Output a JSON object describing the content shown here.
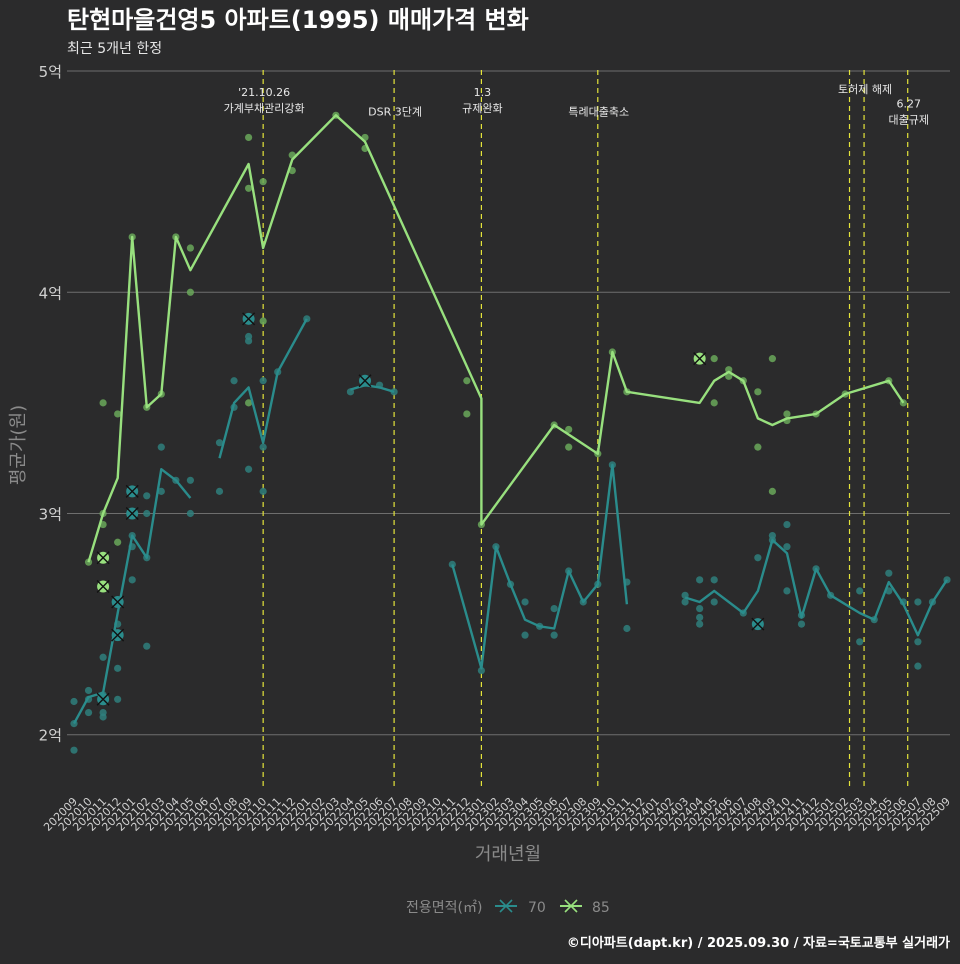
{
  "colors": {
    "background": "#2b2b2c",
    "grid": "#6e6e6e",
    "title": "#ffffff",
    "subtitle": "#e6e6e6",
    "axis_text": "#d0d0d0",
    "axis_title": "#8a8a8a",
    "event_line": "#e4e43a",
    "event_text": "#e8e8e8",
    "series_70": "#2a8c8c",
    "series_85": "#98e07e",
    "scatter_70": "#2f7f7c",
    "scatter_85": "#6aa85a",
    "cancel_mark": "#111111"
  },
  "chart_data": {
    "type": "line",
    "title": "탄현마을건영5 아파트(1995) 매매가격 변화",
    "subtitle": "최근 5개년 한정",
    "xlabel": "거래년월",
    "ylabel": "평균가(원)",
    "ylim": [
      1.75,
      5.05
    ],
    "yticks": [
      {
        "value": 2,
        "label": "2억"
      },
      {
        "value": 3,
        "label": "3억"
      },
      {
        "value": 4,
        "label": "4억"
      },
      {
        "value": 5,
        "label": "5억"
      }
    ],
    "categories": [
      "202009",
      "202010",
      "202011",
      "202012",
      "202101",
      "202102",
      "202103",
      "202104",
      "202105",
      "202106",
      "202107",
      "202108",
      "202109",
      "202110",
      "202111",
      "202112",
      "202201",
      "202202",
      "202203",
      "202204",
      "202205",
      "202206",
      "202207",
      "202208",
      "202209",
      "202210",
      "202211",
      "202212",
      "202301",
      "202302",
      "202303",
      "202304",
      "202305",
      "202306",
      "202307",
      "202308",
      "202309",
      "202310",
      "202311",
      "202312",
      "202401",
      "202402",
      "202403",
      "202404",
      "202405",
      "202406",
      "202407",
      "202408",
      "202409",
      "202410",
      "202411",
      "202412",
      "202501",
      "202502",
      "202503",
      "202504",
      "202505",
      "202506",
      "202507",
      "202508",
      "202509"
    ],
    "legend_title": "전용면적(㎡)",
    "series": [
      {
        "name": "70",
        "colorKey": "series_70",
        "segments": [
          [
            [
              0,
              2.05
            ],
            [
              1,
              2.17
            ],
            [
              2,
              2.19
            ],
            [
              3,
              2.55
            ],
            [
              4,
              2.9
            ],
            [
              5,
              2.8
            ],
            [
              6,
              3.2
            ],
            [
              7,
              3.15
            ],
            [
              8,
              3.07
            ]
          ],
          [
            [
              10,
              3.25
            ],
            [
              11,
              3.5
            ],
            [
              12,
              3.57
            ],
            [
              13,
              3.32
            ],
            [
              14,
              3.64
            ],
            [
              16,
              3.88
            ]
          ],
          [
            [
              19,
              3.56
            ],
            [
              20,
              3.58
            ],
            [
              21,
              3.57
            ],
            [
              22,
              3.55
            ]
          ],
          [
            [
              26,
              2.77
            ],
            [
              28,
              2.3
            ],
            [
              29,
              2.85
            ],
            [
              30,
              2.68
            ],
            [
              31,
              2.52
            ],
            [
              32,
              2.49
            ],
            [
              33,
              2.48
            ],
            [
              34,
              2.74
            ],
            [
              35,
              2.6
            ],
            [
              36,
              2.68
            ],
            [
              37,
              3.22
            ],
            [
              38,
              2.59
            ]
          ],
          [
            [
              42,
              2.62
            ],
            [
              43,
              2.6
            ],
            [
              44,
              2.65
            ],
            [
              46,
              2.55
            ],
            [
              47,
              2.65
            ],
            [
              48,
              2.88
            ],
            [
              49,
              2.82
            ],
            [
              50,
              2.53
            ],
            [
              51,
              2.75
            ],
            [
              52,
              2.63
            ],
            [
              54,
              2.55
            ],
            [
              55,
              2.52
            ],
            [
              56,
              2.69
            ],
            [
              57,
              2.59
            ],
            [
              58,
              2.45
            ],
            [
              59,
              2.6
            ],
            [
              60,
              2.7
            ]
          ]
        ],
        "points": [
          [
            0,
            2.05
          ],
          [
            0,
            2.15
          ],
          [
            0,
            1.93
          ],
          [
            1,
            2.2
          ],
          [
            1,
            2.16
          ],
          [
            1,
            2.1
          ],
          [
            2,
            2.18
          ],
          [
            2,
            2.1
          ],
          [
            2,
            2.08
          ],
          [
            2,
            2.35
          ],
          [
            3,
            2.5
          ],
          [
            3,
            2.3
          ],
          [
            3,
            2.16
          ],
          [
            4,
            2.85
          ],
          [
            4,
            2.7
          ],
          [
            4,
            2.9
          ],
          [
            5,
            2.8
          ],
          [
            5,
            2.4
          ],
          [
            5,
            3.08
          ],
          [
            5,
            3.0
          ],
          [
            6,
            3.3
          ],
          [
            6,
            3.1
          ],
          [
            7,
            3.15
          ],
          [
            8,
            3.15
          ],
          [
            8,
            3.0
          ],
          [
            10,
            3.1
          ],
          [
            10,
            3.32
          ],
          [
            11,
            3.48
          ],
          [
            11,
            3.6
          ],
          [
            12,
            3.78
          ],
          [
            12,
            3.8
          ],
          [
            12,
            3.2
          ],
          [
            13,
            3.6
          ],
          [
            13,
            3.3
          ],
          [
            13,
            3.1
          ],
          [
            14,
            3.64
          ],
          [
            16,
            3.88
          ],
          [
            19,
            3.55
          ],
          [
            21,
            3.58
          ],
          [
            22,
            3.55
          ],
          [
            26,
            2.77
          ],
          [
            28,
            2.29
          ],
          [
            29,
            2.85
          ],
          [
            30,
            2.68
          ],
          [
            31,
            2.6
          ],
          [
            31,
            2.45
          ],
          [
            32,
            2.49
          ],
          [
            33,
            2.45
          ],
          [
            33,
            2.57
          ],
          [
            34,
            2.74
          ],
          [
            35,
            2.6
          ],
          [
            36,
            2.68
          ],
          [
            37,
            3.22
          ],
          [
            38,
            2.48
          ],
          [
            38,
            2.69
          ],
          [
            42,
            2.63
          ],
          [
            42,
            2.6
          ],
          [
            43,
            2.5
          ],
          [
            43,
            2.53
          ],
          [
            43,
            2.57
          ],
          [
            43,
            2.7
          ],
          [
            44,
            2.6
          ],
          [
            44,
            2.7
          ],
          [
            46,
            2.55
          ],
          [
            47,
            2.8
          ],
          [
            48,
            2.88
          ],
          [
            48,
            2.9
          ],
          [
            49,
            2.85
          ],
          [
            49,
            2.95
          ],
          [
            49,
            2.65
          ],
          [
            50,
            2.5
          ],
          [
            50,
            2.54
          ],
          [
            51,
            2.75
          ],
          [
            52,
            2.63
          ],
          [
            54,
            2.42
          ],
          [
            54,
            2.65
          ],
          [
            55,
            2.52
          ],
          [
            56,
            2.73
          ],
          [
            56,
            2.65
          ],
          [
            57,
            2.6
          ],
          [
            58,
            2.42
          ],
          [
            58,
            2.31
          ],
          [
            58,
            2.6
          ],
          [
            59,
            2.6
          ],
          [
            60,
            2.7
          ]
        ],
        "cancelled": [
          [
            2,
            2.16
          ],
          [
            3,
            2.6
          ],
          [
            3,
            2.45
          ],
          [
            4,
            3.1
          ],
          [
            4,
            3.0
          ],
          [
            12,
            3.88
          ],
          [
            20,
            3.6
          ],
          [
            47,
            2.5
          ]
        ]
      },
      {
        "name": "85",
        "colorKey": "series_85",
        "segments": [
          [
            [
              1,
              2.78
            ],
            [
              2,
              3.0
            ],
            [
              3,
              3.16
            ],
            [
              4,
              4.25
            ],
            [
              5,
              3.48
            ],
            [
              6,
              3.54
            ],
            [
              7,
              4.25
            ],
            [
              8,
              4.1
            ],
            [
              12,
              4.58
            ],
            [
              13,
              4.2
            ],
            [
              15,
              4.6
            ],
            [
              18,
              4.8
            ],
            [
              20,
              4.68
            ],
            [
              28,
              3.52
            ],
            [
              28,
              2.95
            ],
            [
              33,
              3.4
            ],
            [
              36,
              3.27
            ],
            [
              37,
              3.73
            ],
            [
              38,
              3.55
            ],
            [
              43,
              3.5
            ],
            [
              44,
              3.6
            ],
            [
              45,
              3.64
            ],
            [
              46,
              3.6
            ],
            [
              47,
              3.43
            ],
            [
              48,
              3.4
            ],
            [
              49,
              3.43
            ],
            [
              51,
              3.45
            ],
            [
              53,
              3.54
            ],
            [
              56,
              3.6
            ],
            [
              57,
              3.5
            ]
          ]
        ],
        "points": [
          [
            1,
            2.78
          ],
          [
            2,
            3.5
          ],
          [
            2,
            3.0
          ],
          [
            2,
            2.95
          ],
          [
            3,
            3.45
          ],
          [
            3,
            2.87
          ],
          [
            4,
            4.25
          ],
          [
            5,
            3.48
          ],
          [
            6,
            3.54
          ],
          [
            7,
            4.25
          ],
          [
            8,
            4.2
          ],
          [
            8,
            4.0
          ],
          [
            12,
            4.7
          ],
          [
            12,
            4.47
          ],
          [
            12,
            3.5
          ],
          [
            13,
            4.5
          ],
          [
            13,
            3.87
          ],
          [
            15,
            4.62
          ],
          [
            15,
            4.55
          ],
          [
            18,
            4.8
          ],
          [
            20,
            4.7
          ],
          [
            20,
            4.65
          ],
          [
            27,
            3.6
          ],
          [
            27,
            3.45
          ],
          [
            28,
            2.95
          ],
          [
            33,
            3.4
          ],
          [
            34,
            3.38
          ],
          [
            34,
            3.3
          ],
          [
            36,
            3.27
          ],
          [
            37,
            3.73
          ],
          [
            38,
            3.55
          ],
          [
            43,
            3.7
          ],
          [
            44,
            3.7
          ],
          [
            44,
            3.5
          ],
          [
            45,
            3.65
          ],
          [
            45,
            3.62
          ],
          [
            46,
            3.6
          ],
          [
            47,
            3.55
          ],
          [
            47,
            3.3
          ],
          [
            48,
            3.7
          ],
          [
            48,
            3.1
          ],
          [
            49,
            3.45
          ],
          [
            49,
            3.42
          ],
          [
            51,
            3.45
          ],
          [
            53,
            3.54
          ],
          [
            56,
            3.6
          ],
          [
            57,
            3.5
          ]
        ],
        "cancelled": [
          [
            2,
            2.8
          ],
          [
            2,
            2.67
          ],
          [
            43,
            3.7
          ]
        ]
      }
    ],
    "events": [
      {
        "index": 13,
        "labels": [
          "'21.10.26",
          "가계부채관리강화"
        ],
        "label_value": 4.85
      },
      {
        "index": 22,
        "labels": [
          "DSR 3단계"
        ],
        "label_value": 4.8
      },
      {
        "index": 28,
        "labels": [
          "1.3",
          "규제완화"
        ],
        "label_value": 4.85
      },
      {
        "index": 36,
        "labels": [
          "특례대출축소"
        ],
        "label_value": 4.8
      },
      {
        "index": 53.3,
        "labels": [],
        "label_value": null
      },
      {
        "index": 54.3,
        "labels": [
          "토허제 해제"
        ],
        "label_value": 4.9
      },
      {
        "index": 57.3,
        "labels": [
          "6.27",
          "대출규제"
        ],
        "label_value": 4.8
      }
    ]
  },
  "footer": {
    "credit": "©디아파트(dapt.kr) / 2025.09.30 / 자료=국토교통부 실거래가"
  }
}
